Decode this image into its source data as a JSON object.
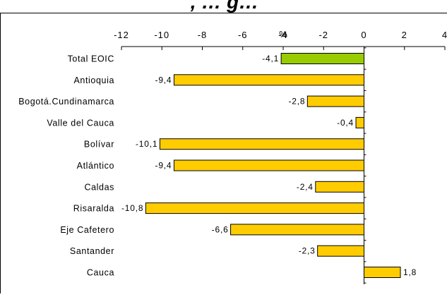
{
  "chart_data": {
    "type": "bar",
    "orientation": "horizontal",
    "title_fragment": ", … g…",
    "unit_label": "%",
    "xlim": [
      -12,
      4
    ],
    "xticks": [
      -12,
      -10,
      -8,
      -6,
      -4,
      -2,
      0,
      2,
      4
    ],
    "xtick_labels": [
      "-12",
      "-10",
      "-8",
      "-6",
      "-4",
      "-2",
      "0",
      "2",
      "4"
    ],
    "x_axis_position": "top",
    "grid": false,
    "categories": [
      "Total EOIC",
      "Antioquia",
      "Bogotá.Cundinamarca",
      "Valle del Cauca",
      "Bolívar",
      "Atlántico",
      "Caldas",
      "Risaralda",
      "Eje Cafetero",
      "Santander",
      "Cauca"
    ],
    "values": [
      -4.1,
      -9.4,
      -2.8,
      -0.4,
      -10.1,
      -9.4,
      -2.4,
      -10.8,
      -6.6,
      -2.3,
      1.8
    ],
    "value_labels": [
      "-4,1",
      "-9,4",
      "-2,8",
      "-0,4",
      "-10,1",
      "-9,4",
      "-2,4",
      "-10,8",
      "-6,6",
      "-2,3",
      "1,8"
    ],
    "bar_colors": [
      "#99CC00",
      "#FFCC00",
      "#FFCC00",
      "#FFCC00",
      "#FFCC00",
      "#FFCC00",
      "#FFCC00",
      "#FFCC00",
      "#FFCC00",
      "#FFCC00",
      "#FFCC00"
    ],
    "bar_outline_color": "#000000"
  }
}
